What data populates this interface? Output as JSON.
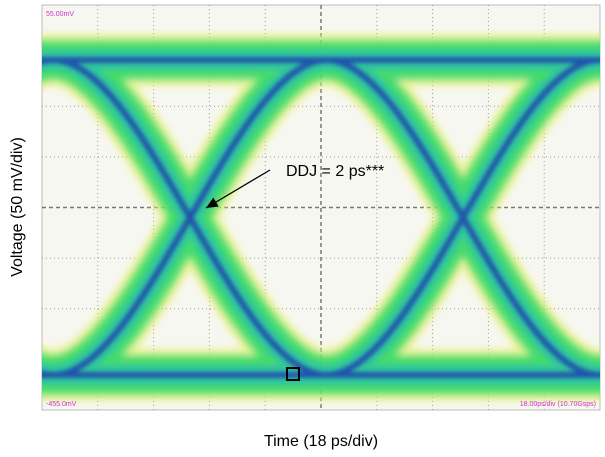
{
  "figure": {
    "x_label": "Time (18 ps/div)",
    "y_label": "Voltage (50 mV/div)",
    "annotation": "DDJ = 2 ps***",
    "screen_labels": {
      "top_left": "55.00mV",
      "bottom_left": "-455.0mV",
      "bottom_right": "18.00ps/div (10.70Gsps)"
    }
  }
}
